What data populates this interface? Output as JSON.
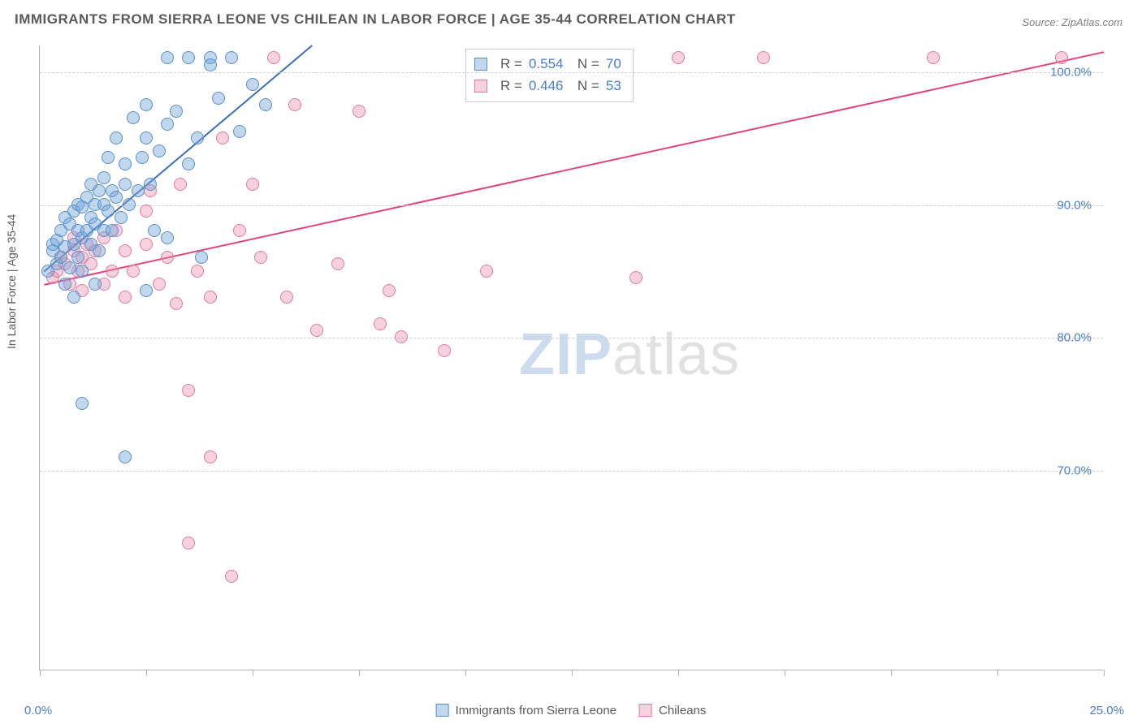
{
  "title": "IMMIGRANTS FROM SIERRA LEONE VS CHILEAN IN LABOR FORCE | AGE 35-44 CORRELATION CHART",
  "source": "Source: ZipAtlas.com",
  "ylabel": "In Labor Force | Age 35-44",
  "watermark_a": "ZIP",
  "watermark_b": "atlas",
  "chart": {
    "type": "scatter-correlation",
    "background_color": "#ffffff",
    "grid_color": "#d0d0d0",
    "axis_color": "#b0b0b0",
    "tick_color": "#4a7ec9",
    "label_color": "#5a5a5a",
    "title_fontsize": 17,
    "label_fontsize": 14,
    "tick_fontsize": 15,
    "point_radius": 8,
    "point_opacity": 0.55,
    "line_width": 2,
    "xlim": [
      0,
      25
    ],
    "ylim": [
      55,
      102
    ],
    "xticks": [
      0,
      2.5,
      5,
      7.5,
      10,
      12.5,
      15,
      17.5,
      20,
      22.5,
      25
    ],
    "xtick_labels_shown": {
      "0": "0.0%",
      "25": "25.0%"
    },
    "yticks": [
      70,
      80,
      90,
      100
    ],
    "ytick_format": "{v}.0%"
  },
  "series": {
    "sierra_leone": {
      "label": "Immigrants from Sierra Leone",
      "color_fill": "rgba(116,166,218,0.45)",
      "color_stroke": "#5b8fc9",
      "line_color": "#3b6fb8",
      "R": "0.554",
      "N": "70",
      "trend": {
        "x1": 0.1,
        "y1": 85.0,
        "x2": 6.4,
        "y2": 102.0
      },
      "points": [
        [
          0.2,
          85.0
        ],
        [
          0.3,
          86.5
        ],
        [
          0.3,
          87.0
        ],
        [
          0.4,
          85.5
        ],
        [
          0.4,
          87.3
        ],
        [
          0.5,
          86.0
        ],
        [
          0.5,
          88.0
        ],
        [
          0.6,
          84.0
        ],
        [
          0.6,
          86.8
        ],
        [
          0.6,
          89.0
        ],
        [
          0.7,
          85.2
        ],
        [
          0.7,
          88.5
        ],
        [
          0.8,
          87.0
        ],
        [
          0.8,
          89.5
        ],
        [
          0.9,
          86.0
        ],
        [
          0.9,
          88.0
        ],
        [
          0.9,
          90.0
        ],
        [
          1.0,
          87.5
        ],
        [
          1.0,
          89.8
        ],
        [
          1.0,
          85.0
        ],
        [
          1.1,
          88.0
        ],
        [
          1.1,
          90.5
        ],
        [
          1.2,
          87.0
        ],
        [
          1.2,
          89.0
        ],
        [
          1.2,
          91.5
        ],
        [
          1.3,
          88.5
        ],
        [
          1.3,
          90.0
        ],
        [
          1.4,
          86.5
        ],
        [
          1.4,
          91.0
        ],
        [
          1.5,
          88.0
        ],
        [
          1.5,
          92.0
        ],
        [
          1.5,
          90.0
        ],
        [
          1.6,
          89.5
        ],
        [
          1.6,
          93.5
        ],
        [
          1.7,
          88.0
        ],
        [
          1.7,
          91.0
        ],
        [
          1.8,
          90.5
        ],
        [
          1.8,
          95.0
        ],
        [
          1.9,
          89.0
        ],
        [
          2.0,
          91.5
        ],
        [
          2.0,
          93.0
        ],
        [
          2.1,
          90.0
        ],
        [
          2.2,
          96.5
        ],
        [
          2.3,
          91.0
        ],
        [
          2.4,
          93.5
        ],
        [
          2.5,
          95.0
        ],
        [
          2.5,
          97.5
        ],
        [
          2.6,
          91.5
        ],
        [
          2.8,
          94.0
        ],
        [
          3.0,
          96.0
        ],
        [
          3.0,
          87.5
        ],
        [
          3.0,
          101.0
        ],
        [
          3.2,
          97.0
        ],
        [
          3.5,
          93.0
        ],
        [
          3.5,
          101.0
        ],
        [
          3.7,
          95.0
        ],
        [
          3.8,
          86.0
        ],
        [
          4.0,
          101.0
        ],
        [
          4.0,
          100.5
        ],
        [
          4.2,
          98.0
        ],
        [
          4.5,
          101.0
        ],
        [
          4.7,
          95.5
        ],
        [
          5.0,
          99.0
        ],
        [
          5.3,
          97.5
        ],
        [
          1.0,
          75.0
        ],
        [
          1.3,
          84.0
        ],
        [
          2.0,
          71.0
        ],
        [
          2.5,
          83.5
        ],
        [
          0.8,
          83.0
        ],
        [
          2.7,
          88.0
        ]
      ]
    },
    "chileans": {
      "label": "Chileans",
      "color_fill": "rgba(236,140,170,0.40)",
      "color_stroke": "#e17aa0",
      "line_color": "#e0447a",
      "R": "0.446",
      "N": "53",
      "trend": {
        "x1": 0.1,
        "y1": 84.0,
        "x2": 25.0,
        "y2": 101.5
      },
      "points": [
        [
          0.3,
          84.5
        ],
        [
          0.4,
          85.0
        ],
        [
          0.5,
          86.0
        ],
        [
          0.6,
          85.5
        ],
        [
          0.7,
          84.0
        ],
        [
          0.8,
          86.5
        ],
        [
          0.8,
          87.5
        ],
        [
          0.9,
          85.0
        ],
        [
          1.0,
          86.0
        ],
        [
          1.0,
          83.5
        ],
        [
          1.1,
          87.0
        ],
        [
          1.2,
          85.5
        ],
        [
          1.3,
          86.5
        ],
        [
          1.5,
          84.0
        ],
        [
          1.5,
          87.5
        ],
        [
          1.7,
          85.0
        ],
        [
          1.8,
          88.0
        ],
        [
          2.0,
          83.0
        ],
        [
          2.0,
          86.5
        ],
        [
          2.2,
          85.0
        ],
        [
          2.5,
          87.0
        ],
        [
          2.5,
          89.5
        ],
        [
          2.6,
          91.0
        ],
        [
          2.8,
          84.0
        ],
        [
          3.0,
          86.0
        ],
        [
          3.2,
          82.5
        ],
        [
          3.3,
          91.5
        ],
        [
          3.5,
          76.0
        ],
        [
          3.7,
          85.0
        ],
        [
          4.0,
          83.0
        ],
        [
          4.0,
          71.0
        ],
        [
          4.3,
          95.0
        ],
        [
          4.5,
          62.0
        ],
        [
          4.7,
          88.0
        ],
        [
          5.0,
          91.5
        ],
        [
          5.2,
          86.0
        ],
        [
          5.5,
          101.0
        ],
        [
          5.8,
          83.0
        ],
        [
          6.0,
          97.5
        ],
        [
          6.5,
          80.5
        ],
        [
          7.0,
          85.5
        ],
        [
          7.5,
          97.0
        ],
        [
          8.0,
          81.0
        ],
        [
          8.2,
          83.5
        ],
        [
          8.5,
          80.0
        ],
        [
          9.5,
          79.0
        ],
        [
          10.5,
          85.0
        ],
        [
          14.0,
          84.5
        ],
        [
          15.0,
          101.0
        ],
        [
          17.0,
          101.0
        ],
        [
          21.0,
          101.0
        ],
        [
          24.0,
          101.0
        ],
        [
          3.5,
          64.5
        ]
      ]
    }
  }
}
